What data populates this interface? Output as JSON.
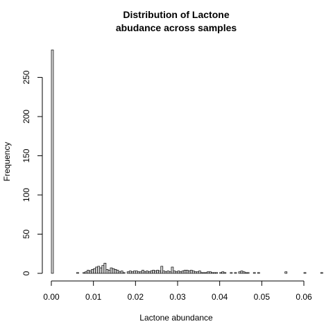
{
  "chart_data": {
    "type": "bar",
    "title": [
      "Distribution of Lactone",
      "abudance across samples"
    ],
    "xlabel": "Lactone abundance",
    "ylabel": "Frequency",
    "xlim": [
      0,
      0.06
    ],
    "ylim": [
      0,
      285
    ],
    "bin_width": 0.0005,
    "x_ticks": [
      0.0,
      0.01,
      0.02,
      0.03,
      0.04,
      0.05,
      0.06
    ],
    "x_tick_labels": [
      "0.00",
      "0.01",
      "0.02",
      "0.03",
      "0.04",
      "0.05",
      "0.06"
    ],
    "y_ticks": [
      0,
      50,
      100,
      150,
      200,
      250
    ],
    "y_tick_labels": [
      "0",
      "50",
      "100",
      "150",
      "200",
      "250"
    ],
    "bar_fill": "#d3d3d3",
    "values": [
      285,
      0,
      0,
      0,
      0,
      0,
      0,
      0,
      0,
      0,
      0,
      0,
      1,
      0,
      0,
      1,
      2,
      4,
      3,
      5,
      6,
      8,
      9,
      7,
      10,
      13,
      5,
      4,
      7,
      6,
      5,
      4,
      2,
      3,
      1,
      0,
      2,
      3,
      2,
      3,
      3,
      2,
      2,
      4,
      2,
      3,
      2,
      3,
      4,
      3,
      4,
      3,
      9,
      3,
      2,
      3,
      2,
      8,
      3,
      2,
      3,
      2,
      3,
      4,
      4,
      3,
      4,
      3,
      2,
      2,
      3,
      1,
      1,
      1,
      2,
      2,
      1,
      1,
      1,
      0,
      1,
      2,
      1,
      0,
      0,
      1,
      0,
      1,
      0,
      2,
      3,
      2,
      1,
      1,
      0,
      0,
      1,
      0,
      1,
      0,
      0,
      0,
      0,
      0,
      0,
      0,
      0,
      0,
      0,
      0,
      0,
      2,
      0,
      0,
      0,
      0,
      0,
      0,
      0,
      0,
      1,
      0,
      0,
      0,
      0,
      0,
      0,
      0,
      1,
      0,
      0,
      0,
      0,
      0,
      0,
      0,
      0,
      0,
      2,
      0,
      0,
      0,
      1,
      0,
      0,
      0,
      0,
      0,
      0,
      0,
      0,
      0,
      0,
      0,
      0,
      0,
      0,
      0,
      0,
      0,
      0,
      0,
      0,
      0,
      0,
      0,
      0,
      0,
      0,
      0,
      1,
      0,
      0,
      0,
      0,
      0,
      0,
      0,
      0,
      0,
      0,
      0,
      0,
      0,
      0,
      0,
      0,
      0,
      0,
      0,
      0,
      0,
      0,
      0,
      0,
      0,
      0,
      0,
      0,
      0,
      0,
      0,
      0,
      0,
      0,
      0,
      1
    ]
  }
}
